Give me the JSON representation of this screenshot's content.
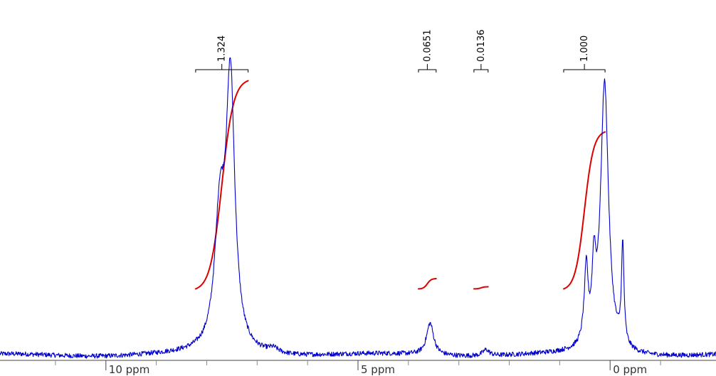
{
  "chart_data": {
    "type": "line",
    "x_axis": {
      "unit": "ppm",
      "reversed": true,
      "range": [
        12.1,
        -2.1
      ],
      "major_ticks": [
        {
          "value": 10,
          "label": "10 ppm"
        },
        {
          "value": 5,
          "label": "5 ppm"
        },
        {
          "value": 0,
          "label": "0 ppm"
        }
      ],
      "minor_ticks": [
        11,
        9,
        8,
        7,
        6,
        4,
        3,
        2,
        1,
        -1
      ]
    },
    "y_axis": {
      "range": [
        -0.05,
        1.0
      ],
      "visible": false
    },
    "grid": false,
    "spectrum": {
      "color": "#0000c8",
      "baseline": 0,
      "noise_amplitude": 0.007,
      "peaks": [
        {
          "center": 7.74,
          "height": 0.37,
          "width": 0.24
        },
        {
          "center": 7.53,
          "height": 0.78,
          "width": 0.21
        },
        {
          "center": 6.68,
          "height": 0.014,
          "width": 0.25
        },
        {
          "center": 3.57,
          "height": 0.094,
          "width": 0.17
        },
        {
          "center": 2.46,
          "height": 0.018,
          "width": 0.16
        },
        {
          "center": 0.5,
          "height": 0.045,
          "width": 0.13
        },
        {
          "center": 0.47,
          "height": 0.18,
          "width": 0.08
        },
        {
          "center": 0.32,
          "height": 0.2,
          "width": 0.09
        },
        {
          "center": 0.11,
          "height": 0.79,
          "width": 0.19
        },
        {
          "center": -0.25,
          "height": 0.29,
          "width": 0.06
        }
      ]
    },
    "integrals": {
      "color": "#dd0000",
      "items": [
        {
          "label": "1.324",
          "value": 1.324,
          "from": 8.22,
          "to": 7.18,
          "curve_base": 0.195,
          "curve_rise": 0.61
        },
        {
          "label": "0.0651",
          "value": 0.0651,
          "from": 3.8,
          "to": 3.45,
          "curve_base": 0.195,
          "curve_rise": 0.03
        },
        {
          "label": "0.0136",
          "value": 0.0136,
          "from": 2.7,
          "to": 2.42,
          "curve_base": 0.195,
          "curve_rise": 0.006
        },
        {
          "label": "1.000",
          "value": 1.0,
          "from": 0.92,
          "to": 0.1,
          "curve_base": 0.195,
          "curve_rise": 0.46
        }
      ]
    }
  }
}
